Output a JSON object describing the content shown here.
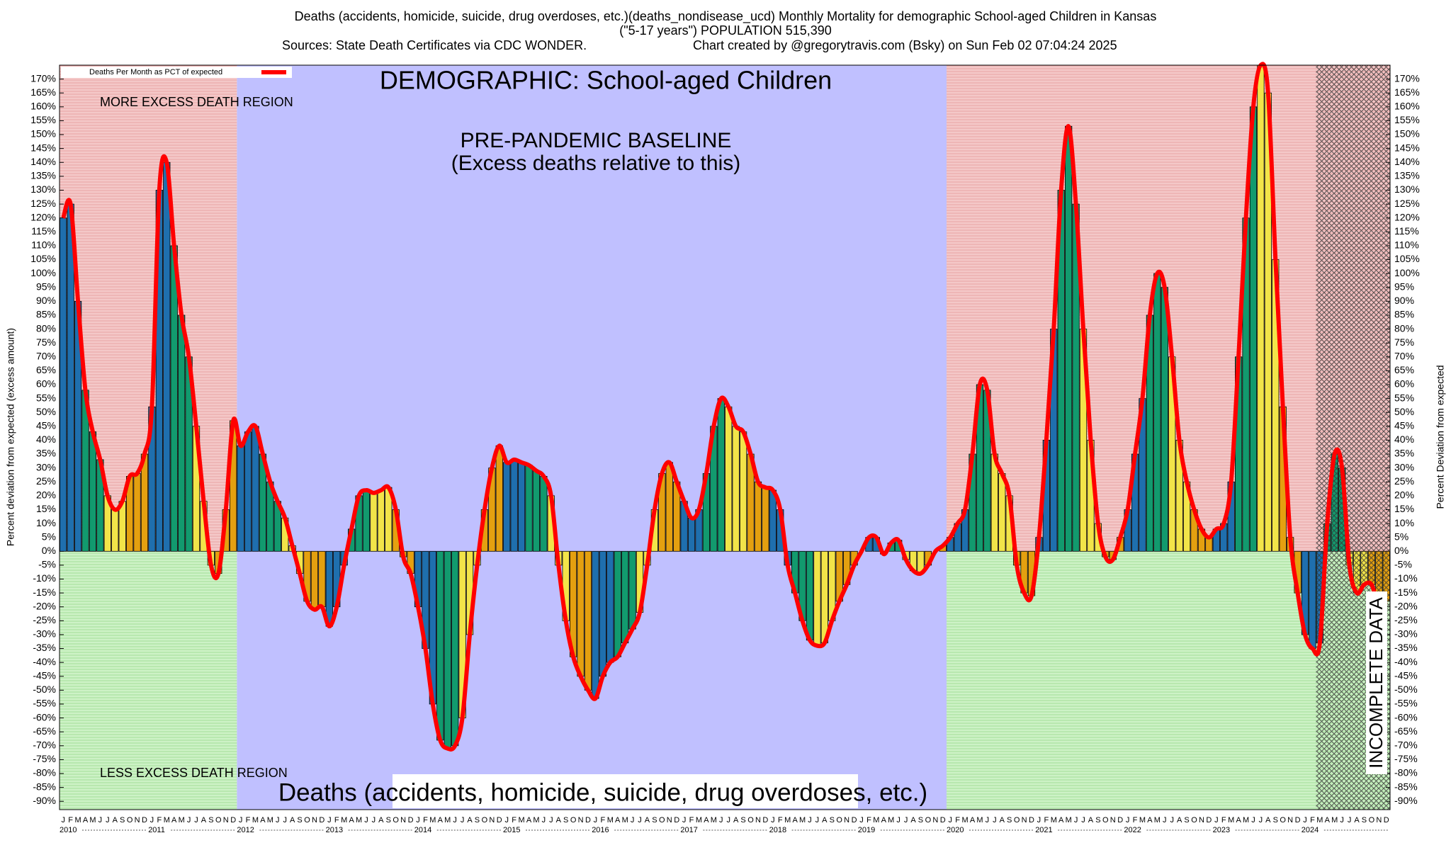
{
  "chart_data": {
    "type": "bar",
    "title": "Deaths (accidents, homicide, suicide, drug overdoses, etc.)(deaths_nondisease_ucd) Monthly Mortality for demographic School-aged Children in Kansas",
    "subtitle": "(\"5-17 years\") POPULATION 515,390",
    "sources": "Sources: State Death Certificates via CDC WONDER.",
    "credit": "Chart created by @gregorytravis.com (Bsky) on Sun Feb 02 07:04:24 2025",
    "y_label": "Percent deviation from expected (excess amount)",
    "y2_label": "Percent Deviation from expected",
    "annotations": [
      "MORE EXCESS DEATH REGION",
      "LESS EXCESS DEATH REGION",
      "DEMOGRAPHIC: School-aged Children",
      "PRE-PANDEMIC BASELINE",
      "(Excess deaths relative to this)",
      "Deaths (accidents, homicide, suicide, drug overdoses, etc.)",
      "INCOMPLETE DATA"
    ],
    "years": [
      "2010",
      "2011",
      "2012",
      "2013",
      "2014",
      "2015",
      "2016",
      "2017",
      "2018",
      "2019",
      "2020",
      "2021",
      "2022",
      "2023",
      "2024"
    ],
    "categories": [
      "J",
      "F",
      "M",
      "A",
      "M",
      "J",
      "J",
      "A",
      "S",
      "O",
      "N",
      "D",
      "J",
      "F",
      "M",
      "A",
      "M",
      "J",
      "J",
      "A",
      "S",
      "O",
      "N",
      "D",
      "J",
      "F",
      "M",
      "A",
      "M",
      "J",
      "J",
      "A",
      "S",
      "O",
      "N",
      "D",
      "J",
      "F",
      "M",
      "A",
      "M",
      "J",
      "J",
      "A",
      "S",
      "O",
      "N",
      "D",
      "J",
      "F",
      "M",
      "A",
      "M",
      "J",
      "J",
      "A",
      "S",
      "O",
      "N",
      "D",
      "J",
      "F",
      "M",
      "A",
      "M",
      "J",
      "J",
      "A",
      "S",
      "O",
      "N",
      "D",
      "J",
      "F",
      "M",
      "A",
      "M",
      "J",
      "J",
      "A",
      "S",
      "O",
      "N",
      "D",
      "J",
      "F",
      "M",
      "A",
      "M",
      "J",
      "J",
      "A",
      "S",
      "O",
      "N",
      "D",
      "J",
      "F",
      "M",
      "A",
      "M",
      "J",
      "J",
      "A",
      "S",
      "O",
      "N",
      "D",
      "J",
      "F",
      "M",
      "A",
      "M",
      "J",
      "J",
      "A",
      "S",
      "O",
      "N",
      "D",
      "J",
      "F",
      "M",
      "A",
      "M",
      "J",
      "J",
      "A",
      "S",
      "O",
      "N",
      "D",
      "J",
      "F",
      "M",
      "A",
      "M",
      "J",
      "J",
      "A",
      "S",
      "O",
      "N",
      "D",
      "J",
      "F",
      "M",
      "A",
      "M",
      "J",
      "J",
      "A",
      "S",
      "O",
      "N",
      "D",
      "J",
      "F",
      "M",
      "A",
      "M",
      "J",
      "J",
      "A",
      "S",
      "O",
      "N",
      "D",
      "J",
      "F",
      "M",
      "A",
      "M",
      "J",
      "J",
      "A",
      "S",
      "O",
      "N",
      "D"
    ],
    "series": [
      {
        "name": "Deaths Per Month as PCT of expected",
        "color": "#ff0000",
        "values": [
          120,
          125,
          90,
          58,
          43,
          33,
          20,
          15,
          18,
          27,
          28,
          35,
          52,
          130,
          140,
          110,
          85,
          70,
          45,
          18,
          -5,
          -8,
          15,
          47,
          38,
          43,
          45,
          35,
          25,
          18,
          12,
          2,
          -8,
          -18,
          -21,
          -20,
          -27,
          -20,
          -5,
          8,
          20,
          22,
          21,
          22,
          23,
          15,
          -2,
          -8,
          -20,
          -35,
          -55,
          -68,
          -71,
          -70,
          -60,
          -30,
          -5,
          15,
          30,
          38,
          32,
          33,
          32,
          31,
          29,
          27,
          20,
          -5,
          -25,
          -38,
          -45,
          -50,
          -53,
          -45,
          -40,
          -38,
          -33,
          -28,
          -22,
          -5,
          15,
          28,
          32,
          25,
          18,
          12,
          15,
          28,
          45,
          55,
          52,
          45,
          43,
          35,
          25,
          23,
          22,
          15,
          -5,
          -15,
          -25,
          -32,
          -34,
          -33,
          -25,
          -18,
          -12,
          -5,
          0,
          5,
          5,
          -1,
          3,
          4,
          -3,
          -7,
          -8,
          -5,
          0,
          2,
          5,
          10,
          15,
          35,
          60,
          58,
          35,
          28,
          20,
          -5,
          -15,
          -16,
          5,
          40,
          80,
          130,
          153,
          125,
          80,
          40,
          10,
          -2,
          -3,
          5,
          15,
          35,
          55,
          85,
          100,
          95,
          70,
          40,
          25,
          15,
          8,
          5,
          8,
          10,
          25,
          70,
          120,
          160,
          175,
          165,
          105,
          52,
          5,
          -15,
          -30,
          -35,
          -33,
          10,
          35,
          30,
          -5,
          -15,
          -12,
          -12,
          -20,
          -18
        ]
      }
    ],
    "bar_colors": [
      "#1f6fae",
      "#129a6e",
      "#f2e449",
      "#e4a010"
    ],
    "ylim": [
      -93,
      175
    ],
    "yticks": [
      {
        "value": -90,
        "label": "-90%"
      },
      {
        "value": -85,
        "label": "-85%"
      },
      {
        "value": -80,
        "label": "-80%"
      },
      {
        "value": -75,
        "label": "-75%"
      },
      {
        "value": -70,
        "label": "-70%"
      },
      {
        "value": -65,
        "label": "-65%"
      },
      {
        "value": -60,
        "label": "-60%"
      },
      {
        "value": -55,
        "label": "-55%"
      },
      {
        "value": -50,
        "label": "-50%"
      },
      {
        "value": -45,
        "label": "-45%"
      },
      {
        "value": -40,
        "label": "-40%"
      },
      {
        "value": -35,
        "label": "-35%"
      },
      {
        "value": -30,
        "label": "-30%"
      },
      {
        "value": -25,
        "label": "-25%"
      },
      {
        "value": -20,
        "label": "-20%"
      },
      {
        "value": -15,
        "label": "-15%"
      },
      {
        "value": -10,
        "label": "-10%"
      },
      {
        "value": -5,
        "label": "-5%"
      },
      {
        "value": 0,
        "label": "0%"
      },
      {
        "value": 5,
        "label": "5%"
      },
      {
        "value": 10,
        "label": "10%"
      },
      {
        "value": 15,
        "label": "15%"
      },
      {
        "value": 20,
        "label": "20%"
      },
      {
        "value": 25,
        "label": "25%"
      },
      {
        "value": 30,
        "label": "30%"
      },
      {
        "value": 35,
        "label": "35%"
      },
      {
        "value": 40,
        "label": "40%"
      },
      {
        "value": 45,
        "label": "45%"
      },
      {
        "value": 50,
        "label": "50%"
      },
      {
        "value": 55,
        "label": "55%"
      },
      {
        "value": 60,
        "label": "60%"
      },
      {
        "value": 65,
        "label": "65%"
      },
      {
        "value": 70,
        "label": "70%"
      },
      {
        "value": 75,
        "label": "75%"
      },
      {
        "value": 80,
        "label": "80%"
      },
      {
        "value": 85,
        "label": "85%"
      },
      {
        "value": 90,
        "label": "90%"
      },
      {
        "value": 95,
        "label": "95%"
      },
      {
        "value": 100,
        "label": "100%"
      },
      {
        "value": 105,
        "label": "105%"
      },
      {
        "value": 110,
        "label": "110%"
      },
      {
        "value": 115,
        "label": "115%"
      },
      {
        "value": 120,
        "label": "120%"
      },
      {
        "value": 125,
        "label": "125%"
      },
      {
        "value": 130,
        "label": "130%"
      },
      {
        "value": 135,
        "label": "135%"
      },
      {
        "value": 140,
        "label": "140%"
      },
      {
        "value": 145,
        "label": "145%"
      },
      {
        "value": 150,
        "label": "150%"
      },
      {
        "value": 155,
        "label": "155%"
      },
      {
        "value": 160,
        "label": "160%"
      },
      {
        "value": 165,
        "label": "165%"
      },
      {
        "value": 170,
        "label": "170%"
      }
    ]
  }
}
